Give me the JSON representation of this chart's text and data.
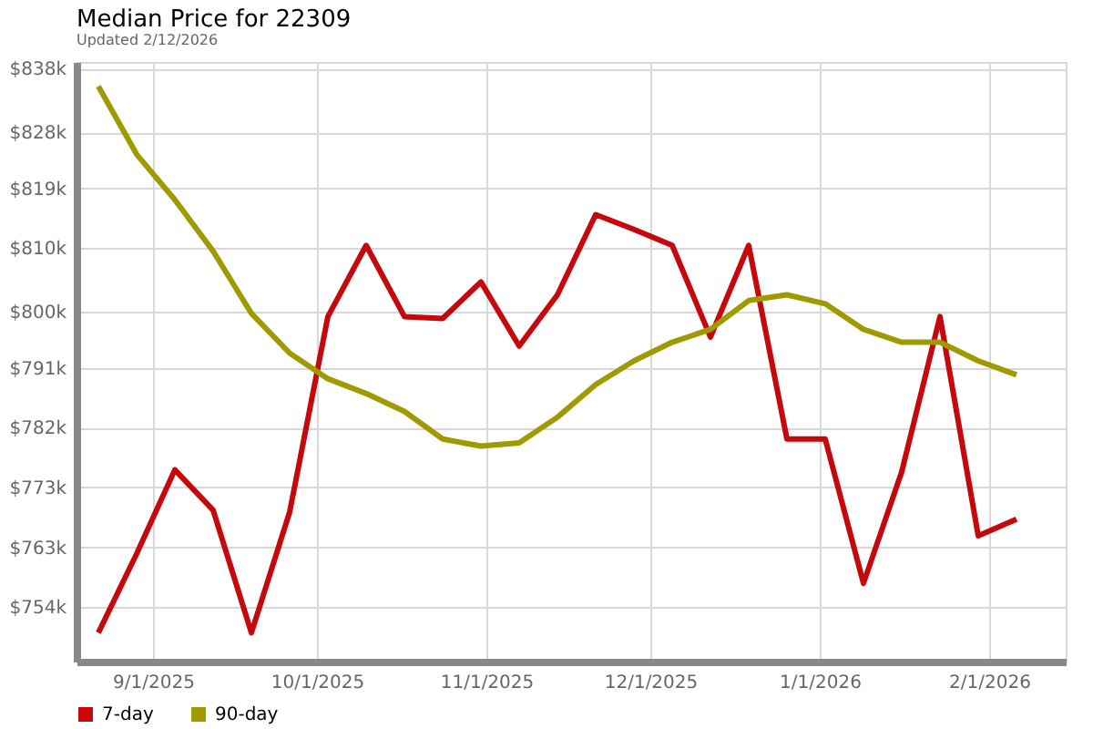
{
  "chart_data": {
    "type": "line",
    "title": "Median Price for 22309",
    "subtitle": "Updated 2/12/2026",
    "x": [
      "2025-08-22",
      "2025-08-29",
      "2025-09-05",
      "2025-09-12",
      "2025-09-19",
      "2025-09-26",
      "2025-10-03",
      "2025-10-10",
      "2025-10-17",
      "2025-10-24",
      "2025-10-31",
      "2025-11-07",
      "2025-11-14",
      "2025-11-21",
      "2025-11-28",
      "2025-12-05",
      "2025-12-12",
      "2025-12-19",
      "2025-12-26",
      "2026-01-02",
      "2026-01-09",
      "2026-01-16",
      "2026-01-23",
      "2026-01-30",
      "2026-02-06"
    ],
    "series": [
      {
        "name": "7-day",
        "color": "#c4080c",
        "values": [
          750.0,
          762.3,
          775.4,
          769.1,
          750.0,
          768.8,
          799.3,
          810.4,
          799.3,
          799.0,
          804.7,
          794.7,
          802.7,
          815.2,
          812.9,
          810.4,
          796.1,
          810.4,
          780.2,
          780.2,
          757.7,
          775.1,
          799.3,
          765.1,
          767.7
        ]
      },
      {
        "name": "90-day",
        "color": "#9e9a00",
        "values": [
          835.2,
          824.6,
          817.5,
          809.5,
          799.8,
          793.6,
          789.6,
          787.3,
          784.5,
          780.2,
          779.1,
          779.6,
          783.6,
          788.7,
          792.4,
          795.3,
          797.3,
          801.8,
          802.7,
          801.3,
          797.3,
          795.3,
          795.3,
          792.4,
          790.2
        ]
      }
    ],
    "xlim": [
      "2025-08-18",
      "2026-02-15"
    ],
    "xticks": [
      {
        "value": "2025-09-01",
        "label": "9/1/2025"
      },
      {
        "value": "2025-10-01",
        "label": "10/1/2025"
      },
      {
        "value": "2025-11-01",
        "label": "11/1/2025"
      },
      {
        "value": "2025-12-01",
        "label": "12/1/2025"
      },
      {
        "value": "2026-01-01",
        "label": "1/1/2026"
      },
      {
        "value": "2026-02-01",
        "label": "2/1/2026"
      }
    ],
    "ylim": [
      745.5,
      839
    ],
    "yticks": [
      {
        "value": 754,
        "label": "$754k"
      },
      {
        "value": 763.3,
        "label": "$763k"
      },
      {
        "value": 772.7,
        "label": "$773k"
      },
      {
        "value": 782,
        "label": "$782k"
      },
      {
        "value": 791.3,
        "label": "$791k"
      },
      {
        "value": 800,
        "label": "$800k"
      },
      {
        "value": 810,
        "label": "$810k"
      },
      {
        "value": 819.3,
        "label": "$819k"
      },
      {
        "value": 828,
        "label": "$828k"
      },
      {
        "value": 838,
        "label": "$838k"
      }
    ],
    "grid": true,
    "legend": "bottom",
    "line_style": "solid",
    "marker": "none"
  }
}
